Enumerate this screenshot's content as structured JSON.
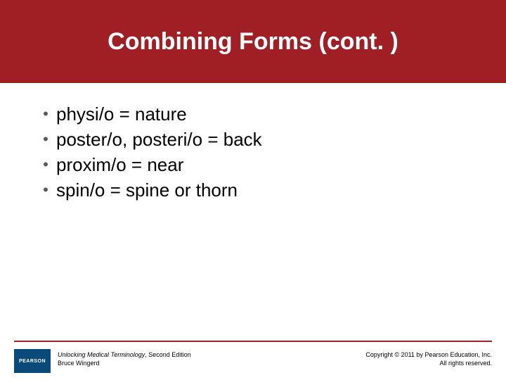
{
  "header": {
    "title": "Combining Forms (cont. )",
    "background_color": "#a01f24",
    "text_color": "#ffffff",
    "title_fontsize": 34
  },
  "content": {
    "bullet_char": "•",
    "bullet_color": "#5a5a5a",
    "text_color": "#000000",
    "items": [
      "physi/o = nature",
      "poster/o, posteri/o = back",
      "proxim/o = near",
      "spin/o = spine or thorn"
    ]
  },
  "footer": {
    "line_color": "#a01f24",
    "logo": {
      "bg_color": "#0a4a7a",
      "label": "PEARSON"
    },
    "book_title": "Unlocking Medical Terminology",
    "book_edition": ", Second Edition",
    "author": "Bruce Wingerd",
    "copyright_line1": "Copyright © 2011 by Pearson Education, Inc.",
    "copyright_line2": "All rights reserved."
  }
}
